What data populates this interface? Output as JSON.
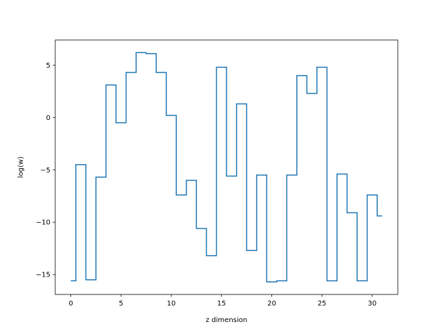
{
  "chart_data": {
    "type": "line",
    "style": "step",
    "color": "#1f77b4",
    "title": "",
    "xlabel": "z dimension",
    "ylabel": "log(w)",
    "xlim": [
      -1.55,
      32.55
    ],
    "ylim": [
      -16.9,
      7.4
    ],
    "grid": false,
    "xticks": [
      0,
      5,
      10,
      15,
      20,
      25,
      30
    ],
    "yticks": [
      5,
      0,
      -5,
      -10,
      -15
    ],
    "xtick_labels": [
      "0",
      "5",
      "10",
      "15",
      "20",
      "25",
      "30"
    ],
    "ytick_labels": [
      "5",
      "0",
      "−5",
      "−10",
      "−15"
    ],
    "x": [
      0,
      1,
      2,
      3,
      4,
      5,
      6,
      7,
      8,
      9,
      10,
      11,
      12,
      13,
      14,
      15,
      16,
      17,
      18,
      19,
      20,
      21,
      22,
      23,
      24,
      25,
      26,
      27,
      28,
      29,
      30,
      31
    ],
    "y": [
      -15.6,
      -4.5,
      -15.5,
      -5.7,
      3.1,
      -0.5,
      4.3,
      6.2,
      6.1,
      4.3,
      0.2,
      -7.4,
      -6.0,
      -10.6,
      -13.2,
      4.8,
      -5.6,
      1.3,
      -12.7,
      -5.5,
      -15.7,
      -15.6,
      -5.5,
      4.0,
      2.3,
      4.8,
      -15.6,
      -5.4,
      -9.1,
      -15.6,
      -7.4,
      -9.4
    ]
  }
}
